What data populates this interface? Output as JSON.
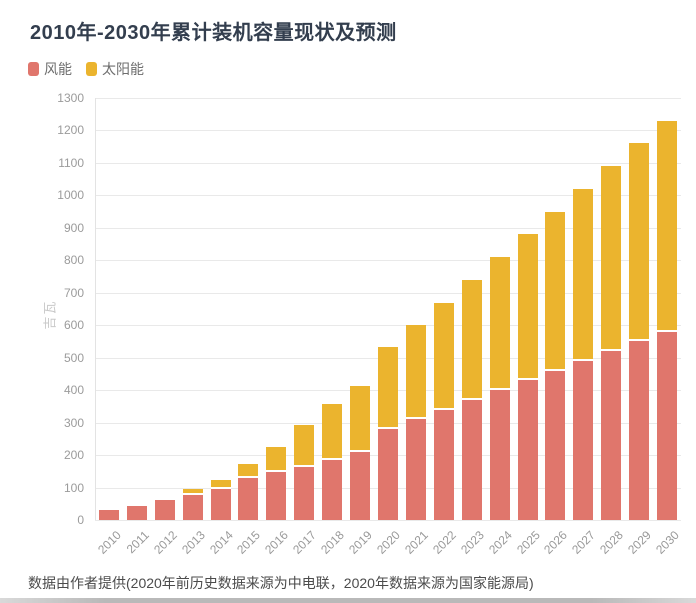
{
  "page": {
    "title": "2010年-2030年累计装机容量现状及预测",
    "footer": "数据由作者提供(2020年前历史数据来源为中电联，2020年数据来源为国家能源局)"
  },
  "legend": [
    {
      "label": "风能",
      "color": "#e0766c"
    },
    {
      "label": "太阳能",
      "color": "#ebb42e"
    }
  ],
  "colors": {
    "wind": "#e0766c",
    "solar": "#ebb42e",
    "title_text": "#333e4e",
    "tick_text": "#999999",
    "grid": "#e9e9e9",
    "axis_title_text": "#c9c9c9",
    "footer_text": "#4b4b4b"
  },
  "chart_data": {
    "type": "bar",
    "stacked": true,
    "title": "2010年-2030年累计装机容量现状及预测",
    "xlabel": "",
    "ylabel": "吉瓦",
    "ylim": [
      0,
      1300
    ],
    "ytick_step": 100,
    "grid": true,
    "legend_position": "top-left",
    "categories": [
      "2010",
      "2011",
      "2012",
      "2013",
      "2014",
      "2015",
      "2016",
      "2017",
      "2018",
      "2019",
      "2020",
      "2021",
      "2022",
      "2023",
      "2024",
      "2025",
      "2026",
      "2027",
      "2028",
      "2029",
      "2030"
    ],
    "series": [
      {
        "name": "风能",
        "color": "#e0766c",
        "values": [
          31,
          46,
          61,
          76,
          96,
          129,
          149,
          164,
          184,
          210,
          281,
          310,
          340,
          370,
          400,
          430,
          460,
          490,
          520,
          550,
          580
        ]
      },
      {
        "name": "太阳能",
        "color": "#ebb42e",
        "values": [
          1,
          3,
          7,
          19,
          28,
          43,
          77,
          130,
          174,
          204,
          253,
          290,
          330,
          370,
          410,
          450,
          490,
          530,
          570,
          610,
          650
        ]
      }
    ],
    "totals": [
      32,
      49,
      68,
      95,
      124,
      172,
      226,
      294,
      358,
      414,
      534,
      600,
      670,
      740,
      810,
      880,
      950,
      1020,
      1090,
      1160,
      1230
    ]
  }
}
